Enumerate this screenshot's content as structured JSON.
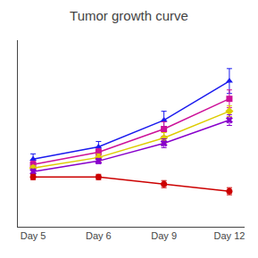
{
  "chart_data": {
    "type": "line",
    "title": "Tumor growth curve",
    "categories": [
      "Day 5",
      "Day 6",
      "Day 9",
      "Day 12"
    ],
    "series": [
      {
        "color": "#1a1aee",
        "marker": "triangle-up",
        "values": [
          0.38,
          0.45,
          0.6,
          0.82
        ],
        "errors": [
          0.03,
          0.03,
          0.05,
          0.07
        ]
      },
      {
        "color": "#cc1199",
        "marker": "square",
        "values": [
          0.35,
          0.42,
          0.55,
          0.72
        ],
        "errors": [
          0.02,
          0.02,
          0.04,
          0.05
        ]
      },
      {
        "color": "#ddcc00",
        "marker": "diamond",
        "values": [
          0.33,
          0.39,
          0.5,
          0.65
        ],
        "errors": [
          0.015,
          0.02,
          0.03,
          0.03
        ]
      },
      {
        "color": "#8800cc",
        "marker": "x",
        "values": [
          0.31,
          0.37,
          0.47,
          0.6
        ],
        "errors": [
          0.015,
          0.015,
          0.025,
          0.03
        ]
      },
      {
        "color": "#cc0000",
        "marker": "circle",
        "values": [
          0.28,
          0.28,
          0.24,
          0.2
        ],
        "errors": [
          0.015,
          0.015,
          0.02,
          0.02
        ]
      }
    ],
    "ylim": [
      0.0,
      1.05
    ],
    "grid": false,
    "tick_labels": "x"
  }
}
